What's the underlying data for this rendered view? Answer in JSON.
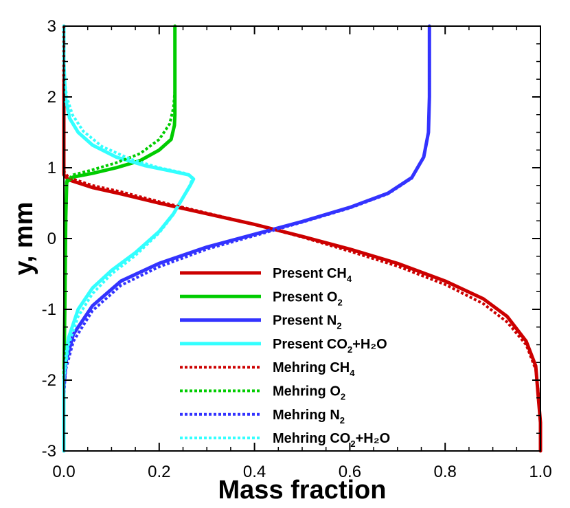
{
  "chart_data": {
    "type": "line",
    "xlabel": "Mass fraction",
    "ylabel": "y, mm",
    "xlim": [
      0.0,
      1.0
    ],
    "ylim": [
      -3,
      3
    ],
    "x_ticks": [
      "0.0",
      "0.2",
      "0.4",
      "0.6",
      "0.8",
      "1.0"
    ],
    "x_tick_values": [
      0.0,
      0.2,
      0.4,
      0.6,
      0.8,
      1.0
    ],
    "y_ticks": [
      "3",
      "2",
      "1",
      "0",
      "-1",
      "-2",
      "-3"
    ],
    "y_tick_values": [
      3,
      2,
      1,
      0,
      -1,
      -2,
      -3
    ],
    "grid": false,
    "legend_position": "lower-center",
    "series": [
      {
        "name": "Present CH4",
        "label_main": "Present CH",
        "label_sub": "4",
        "label_tail": "",
        "color": "#cc0000",
        "style": "solid",
        "points": [
          [
            0.0,
            3.0
          ],
          [
            0.0,
            0.9
          ],
          [
            0.01,
            0.83
          ],
          [
            0.06,
            0.72
          ],
          [
            0.12,
            0.63
          ],
          [
            0.2,
            0.5
          ],
          [
            0.3,
            0.35
          ],
          [
            0.4,
            0.2
          ],
          [
            0.5,
            0.03
          ],
          [
            0.6,
            -0.15
          ],
          [
            0.7,
            -0.35
          ],
          [
            0.8,
            -0.6
          ],
          [
            0.88,
            -0.85
          ],
          [
            0.93,
            -1.1
          ],
          [
            0.97,
            -1.45
          ],
          [
            0.99,
            -1.8
          ],
          [
            0.995,
            -2.2
          ],
          [
            1.0,
            -2.6
          ],
          [
            1.0,
            -3.0
          ]
        ]
      },
      {
        "name": "Present O2",
        "label_main": "Present O",
        "label_sub": "2",
        "label_tail": "",
        "color": "#00cc00",
        "style": "solid",
        "points": [
          [
            0.0,
            -3.0
          ],
          [
            0.0,
            -2.0
          ],
          [
            0.002,
            -1.0
          ],
          [
            0.004,
            0.3
          ],
          [
            0.006,
            0.8
          ],
          [
            0.02,
            0.87
          ],
          [
            0.06,
            0.92
          ],
          [
            0.11,
            1.0
          ],
          [
            0.16,
            1.1
          ],
          [
            0.2,
            1.25
          ],
          [
            0.225,
            1.4
          ],
          [
            0.232,
            1.6
          ],
          [
            0.233,
            1.75
          ],
          [
            0.233,
            2.6
          ],
          [
            0.233,
            3.0
          ]
        ]
      },
      {
        "name": "Present N2",
        "label_main": "Present N",
        "label_sub": "2",
        "label_tail": "",
        "color": "#3333ff",
        "style": "solid",
        "points": [
          [
            0.0,
            -3.0
          ],
          [
            0.0,
            -2.1
          ],
          [
            0.004,
            -1.75
          ],
          [
            0.02,
            -1.35
          ],
          [
            0.06,
            -0.95
          ],
          [
            0.12,
            -0.6
          ],
          [
            0.2,
            -0.35
          ],
          [
            0.3,
            -0.12
          ],
          [
            0.4,
            0.06
          ],
          [
            0.5,
            0.24
          ],
          [
            0.6,
            0.44
          ],
          [
            0.68,
            0.64
          ],
          [
            0.73,
            0.86
          ],
          [
            0.755,
            1.15
          ],
          [
            0.765,
            1.5
          ],
          [
            0.767,
            2.0
          ],
          [
            0.767,
            3.0
          ]
        ]
      },
      {
        "name": "Present CO2+H2O",
        "label_main": "Present CO",
        "label_sub": "2",
        "label_tail": "+H₂O",
        "color": "#33ffff",
        "style": "solid",
        "points": [
          [
            0.0,
            -3.0
          ],
          [
            0.0,
            -1.9
          ],
          [
            0.01,
            -1.4
          ],
          [
            0.03,
            -1.0
          ],
          [
            0.06,
            -0.7
          ],
          [
            0.1,
            -0.45
          ],
          [
            0.15,
            -0.2
          ],
          [
            0.2,
            0.1
          ],
          [
            0.23,
            0.35
          ],
          [
            0.25,
            0.58
          ],
          [
            0.265,
            0.75
          ],
          [
            0.272,
            0.84
          ],
          [
            0.262,
            0.9
          ],
          [
            0.22,
            0.96
          ],
          [
            0.17,
            1.03
          ],
          [
            0.11,
            1.15
          ],
          [
            0.06,
            1.32
          ],
          [
            0.03,
            1.5
          ],
          [
            0.012,
            1.7
          ],
          [
            0.003,
            2.0
          ],
          [
            0.0,
            2.5
          ],
          [
            0.0,
            3.0
          ]
        ]
      },
      {
        "name": "Mehring CH4",
        "label_main": "Mehring CH",
        "label_sub": "4",
        "label_tail": "",
        "color": "#cc0000",
        "style": "dotted",
        "points": [
          [
            0.0,
            3.0
          ],
          [
            0.0,
            0.95
          ],
          [
            0.01,
            0.86
          ],
          [
            0.06,
            0.75
          ],
          [
            0.12,
            0.66
          ],
          [
            0.2,
            0.52
          ],
          [
            0.3,
            0.36
          ],
          [
            0.4,
            0.2
          ],
          [
            0.5,
            0.02
          ],
          [
            0.6,
            -0.18
          ],
          [
            0.7,
            -0.39
          ],
          [
            0.8,
            -0.65
          ],
          [
            0.88,
            -0.92
          ],
          [
            0.93,
            -1.18
          ],
          [
            0.97,
            -1.5
          ],
          [
            0.99,
            -1.85
          ],
          [
            0.997,
            -2.25
          ],
          [
            1.0,
            -2.7
          ],
          [
            1.0,
            -3.0
          ]
        ]
      },
      {
        "name": "Mehring O2",
        "label_main": "Mehring O",
        "label_sub": "2",
        "label_tail": "",
        "color": "#00cc00",
        "style": "dotted",
        "points": [
          [
            0.0,
            -3.0
          ],
          [
            0.0,
            -2.0
          ],
          [
            0.002,
            -1.0
          ],
          [
            0.004,
            0.3
          ],
          [
            0.006,
            0.82
          ],
          [
            0.02,
            0.9
          ],
          [
            0.06,
            0.97
          ],
          [
            0.11,
            1.07
          ],
          [
            0.16,
            1.2
          ],
          [
            0.2,
            1.4
          ],
          [
            0.222,
            1.62
          ],
          [
            0.23,
            1.85
          ],
          [
            0.233,
            2.1
          ],
          [
            0.233,
            2.25
          ]
        ]
      },
      {
        "name": "Mehring N2",
        "label_main": "Mehring N",
        "label_sub": "2",
        "label_tail": "",
        "color": "#3333ff",
        "style": "dotted",
        "points": [
          [
            0.0,
            -3.0
          ],
          [
            0.0,
            -2.2
          ],
          [
            0.004,
            -1.85
          ],
          [
            0.02,
            -1.45
          ],
          [
            0.06,
            -1.02
          ],
          [
            0.12,
            -0.66
          ],
          [
            0.2,
            -0.4
          ],
          [
            0.3,
            -0.15
          ],
          [
            0.4,
            0.04
          ],
          [
            0.5,
            0.23
          ],
          [
            0.6,
            0.43
          ],
          [
            0.68,
            0.63
          ],
          [
            0.73,
            0.85
          ],
          [
            0.755,
            1.15
          ],
          [
            0.765,
            1.5
          ],
          [
            0.767,
            2.0
          ],
          [
            0.767,
            3.0
          ]
        ]
      },
      {
        "name": "Mehring CO2+H2O",
        "label_main": "Mehring CO",
        "label_sub": "2",
        "label_tail": "+H₂O",
        "color": "#33ffff",
        "style": "dotted",
        "points": [
          [
            0.0,
            -3.0
          ],
          [
            0.0,
            -2.0
          ],
          [
            0.01,
            -1.5
          ],
          [
            0.03,
            -1.1
          ],
          [
            0.06,
            -0.78
          ],
          [
            0.1,
            -0.5
          ],
          [
            0.15,
            -0.24
          ],
          [
            0.2,
            0.08
          ],
          [
            0.23,
            0.34
          ],
          [
            0.25,
            0.58
          ],
          [
            0.265,
            0.76
          ],
          [
            0.27,
            0.86
          ],
          [
            0.255,
            0.92
          ],
          [
            0.2,
            1.0
          ],
          [
            0.14,
            1.12
          ],
          [
            0.08,
            1.3
          ],
          [
            0.04,
            1.52
          ],
          [
            0.018,
            1.75
          ],
          [
            0.006,
            2.0
          ],
          [
            0.0,
            2.3
          ],
          [
            0.0,
            3.0
          ]
        ]
      }
    ]
  }
}
